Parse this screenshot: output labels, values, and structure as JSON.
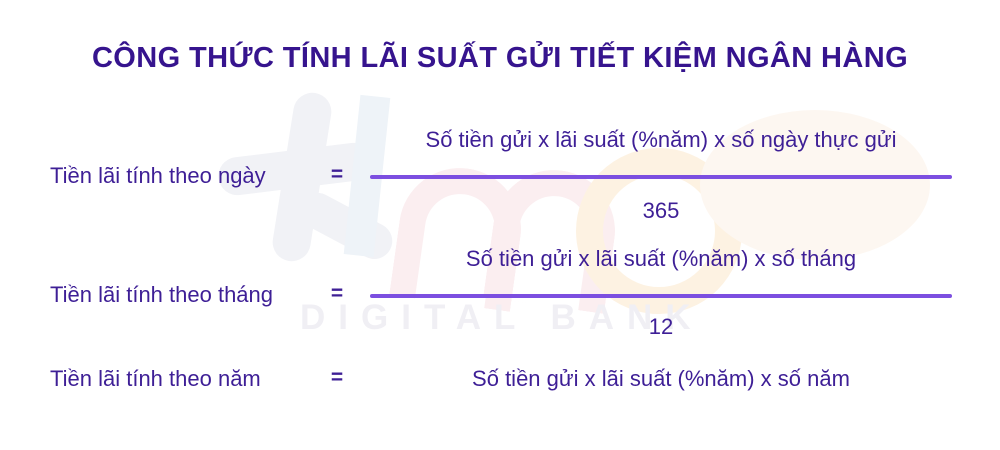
{
  "title": "CÔNG THỨC TÍNH LÃI SUẤT GỬI TIẾT KIỆM NGÂN HÀNG",
  "rows": [
    {
      "label": "Tiền lãi tính theo ngày",
      "equals": "=",
      "numerator": "Số tiền gửi x lãi suất (%năm) x số ngày thực gửi",
      "denominator": "365"
    },
    {
      "label": "Tiền lãi tính theo tháng",
      "equals": "=",
      "numerator": "Số tiền gửi x lãi suất (%năm) x số tháng",
      "denominator": "12"
    },
    {
      "label": "Tiền lãi tính theo năm",
      "equals": "=",
      "expression": "Số tiền gửi x lãi suất (%năm) x số năm"
    }
  ],
  "watermark": {
    "brand_text": "DIGITAL BANK",
    "logo": "timo-brush-logo"
  },
  "colors": {
    "background": "#ffffff",
    "title_text": "#36148e",
    "body_text": "#3e1f96",
    "fraction_bar": "#7c4fe0",
    "watermark_text": "#f0eff4"
  }
}
